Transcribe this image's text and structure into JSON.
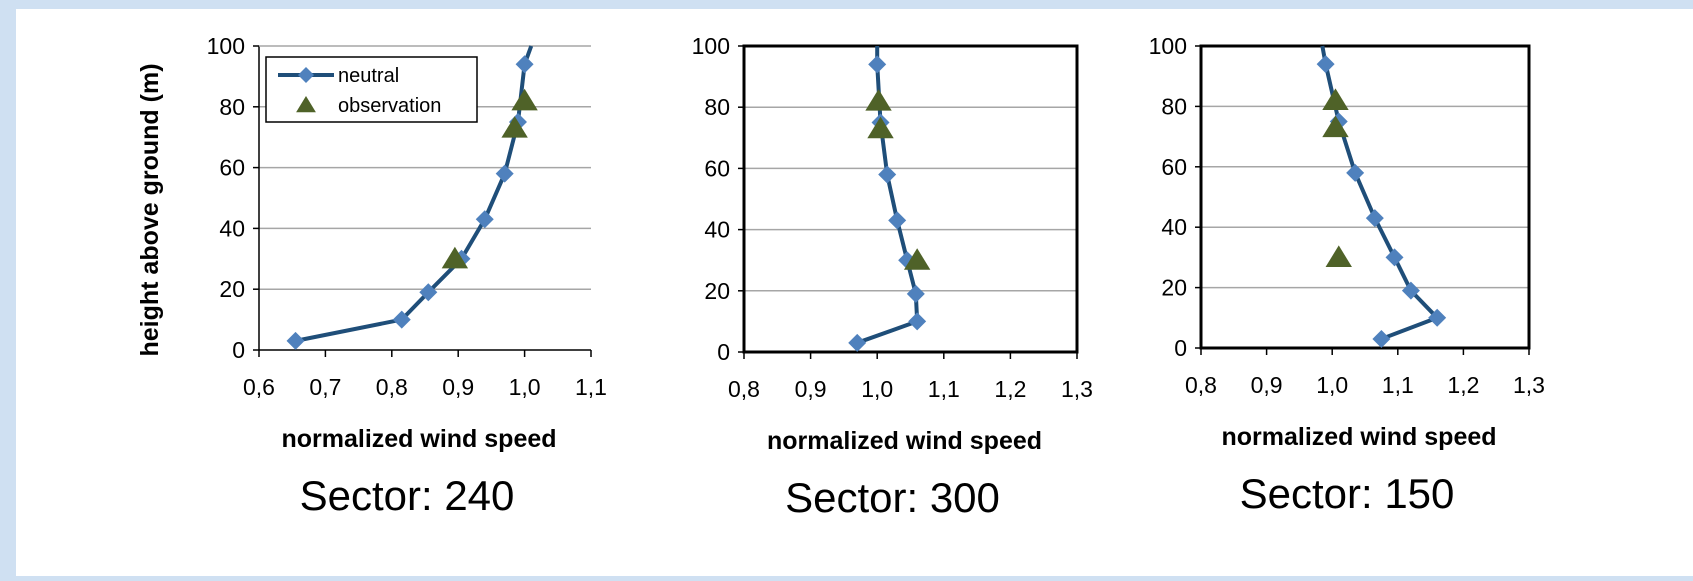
{
  "colors": {
    "page_border": "#cfe0f2",
    "neutral_line": "#1f4e79",
    "neutral_marker": "#4f81bd",
    "observation_marker": "#4f6228",
    "grid": "#a6a6a6"
  },
  "chart_data": [
    {
      "type": "line",
      "title": "Sector: 240",
      "xlabel": "normalized wind speed",
      "ylabel": "height above ground (m)",
      "xlim": [
        0.6,
        1.1
      ],
      "ylim": [
        0,
        100
      ],
      "x_ticks": [
        "0,6",
        "0,7",
        "0,8",
        "0,9",
        "1,0",
        "1,1"
      ],
      "y_ticks": [
        "0",
        "20",
        "40",
        "60",
        "80",
        "100"
      ],
      "grid": "horizontal",
      "legend": {
        "position": "top-left",
        "entries": [
          "neutral",
          "observation"
        ]
      },
      "series": [
        {
          "name": "neutral",
          "x": [
            0.655,
            0.815,
            0.855,
            0.905,
            0.94,
            0.97,
            0.99,
            1.0,
            1.01
          ],
          "y": [
            3,
            10,
            19,
            30,
            43,
            58,
            75,
            94,
            100
          ],
          "marker_from": 0,
          "marker_to": 7
        },
        {
          "name": "observation",
          "x": [
            0.895,
            0.985,
            1.0
          ],
          "y": [
            30,
            73,
            82
          ]
        }
      ]
    },
    {
      "type": "line",
      "title": "Sector: 300",
      "xlabel": "normalized wind speed",
      "ylabel": "",
      "xlim": [
        0.8,
        1.3
      ],
      "ylim": [
        0,
        100
      ],
      "x_ticks": [
        "0,8",
        "0,9",
        "1,0",
        "1,1",
        "1,2",
        "1,3"
      ],
      "y_ticks": [
        "0",
        "20",
        "40",
        "60",
        "80",
        "100"
      ],
      "grid": "horizontal",
      "series": [
        {
          "name": "neutral",
          "x": [
            0.97,
            1.06,
            1.058,
            1.045,
            1.03,
            1.015,
            1.005,
            1.0,
            1.0
          ],
          "y": [
            3,
            10,
            19,
            30,
            43,
            58,
            75,
            94,
            100
          ],
          "marker_from": 0,
          "marker_to": 7
        },
        {
          "name": "observation",
          "x": [
            1.06,
            1.005,
            1.002
          ],
          "y": [
            30,
            73,
            82
          ]
        }
      ]
    },
    {
      "type": "line",
      "title": "Sector: 150",
      "xlabel": "normalized wind speed",
      "ylabel": "",
      "xlim": [
        0.8,
        1.3
      ],
      "ylim": [
        0,
        100
      ],
      "x_ticks": [
        "0,8",
        "0,9",
        "1,0",
        "1,1",
        "1,2",
        "1,3"
      ],
      "y_ticks": [
        "0",
        "20",
        "40",
        "60",
        "80",
        "100"
      ],
      "grid": "horizontal",
      "series": [
        {
          "name": "neutral",
          "x": [
            1.075,
            1.16,
            1.12,
            1.095,
            1.065,
            1.035,
            1.01,
            0.99,
            0.985
          ],
          "y": [
            3,
            10,
            19,
            30,
            43,
            58,
            75,
            94,
            100
          ],
          "marker_from": 0,
          "marker_to": 7
        },
        {
          "name": "observation",
          "x": [
            1.01,
            1.005,
            1.005
          ],
          "y": [
            30,
            73,
            82
          ]
        }
      ]
    }
  ]
}
